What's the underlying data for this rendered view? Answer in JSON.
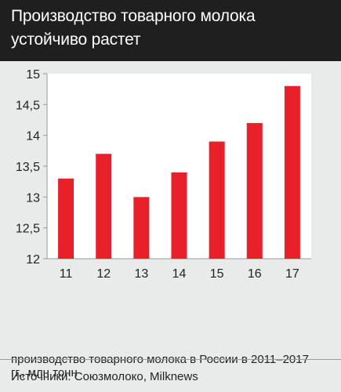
{
  "header": {
    "title": "Производство товарного молока устойчиво растет"
  },
  "caption": "производство товарного молока в России в 2011–2017 гг., млн тонн",
  "source": "Источники: Союзмолоко, Milknews",
  "colors": {
    "bar": "#e8202a",
    "header_bg": "#1f1f1f",
    "panel_bg": "#e9eaea",
    "plot_bg": "#ffffff"
  },
  "chart_data": {
    "type": "bar",
    "categories": [
      "11",
      "12",
      "13",
      "14",
      "15",
      "16",
      "17"
    ],
    "values": [
      13.3,
      13.7,
      13.0,
      13.4,
      13.9,
      14.2,
      14.8
    ],
    "ylim": [
      12,
      15
    ],
    "yticks": [
      "12",
      "12,5",
      "13",
      "13,5",
      "14",
      "14,5",
      "15"
    ],
    "grid": false,
    "title": "",
    "xlabel": "",
    "ylabel": ""
  }
}
